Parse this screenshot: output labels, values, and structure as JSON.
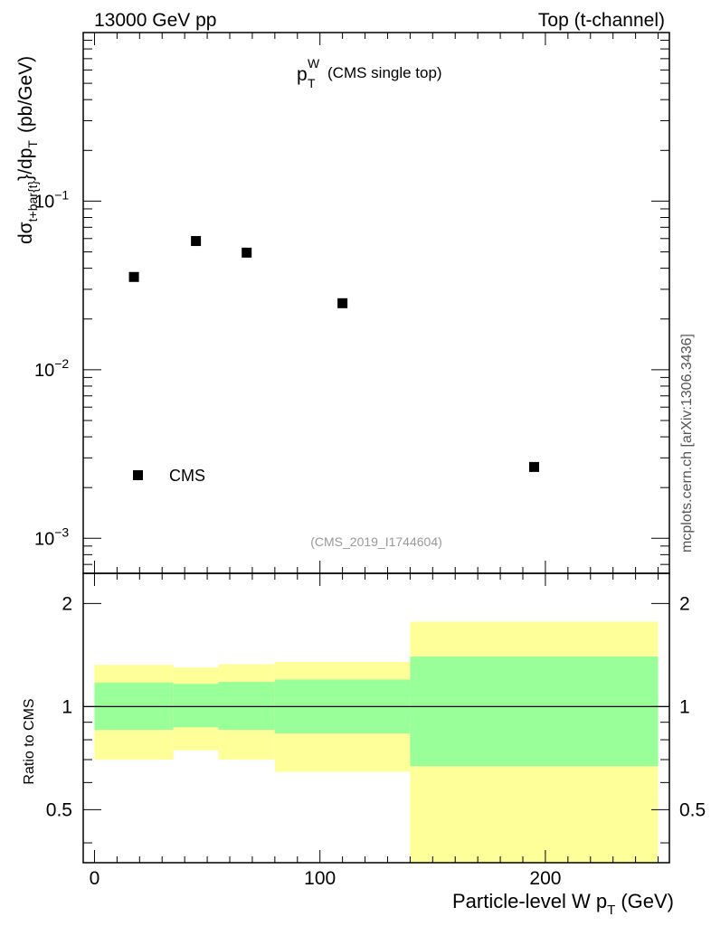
{
  "header": {
    "left": "13000 GeV pp",
    "right": "Top (t-channel)"
  },
  "plot_title": {
    "main": "p",
    "sub": "T",
    "sup": "W",
    "suffix": "(CMS single top)"
  },
  "watermark": "(CMS_2019_I1744604)",
  "side_label": "mcplots.cern.ch [arXiv:1306.3436]",
  "ylabel": {
    "p1": "dσ",
    "p2": "t+bar{t}",
    "p3": "}/dp",
    "p4": "T",
    "p5": "(pb/GeV)"
  },
  "ratio_ylabel": "Ratio to CMS",
  "xlabel": {
    "p1": "Particle-level W p",
    "p2": "T",
    "p3": "(GeV)"
  },
  "colors": {
    "inner_band": "#99ff99",
    "outer_band": "#ffff99",
    "marker": "#000000",
    "ref_line": "#000000"
  },
  "chart_data": {
    "type": "scatter",
    "title": "p_T^W (CMS single top)",
    "xlim": [
      -5,
      255
    ],
    "main": {
      "yscale": "log",
      "ylim": [
        0.00062,
        1.0
      ],
      "y_ticks": [
        {
          "value": 0.1,
          "base": "10",
          "exp": "−1"
        },
        {
          "value": 0.01,
          "base": "10",
          "exp": "−2"
        },
        {
          "value": 0.001,
          "base": "10",
          "exp": "−3"
        }
      ],
      "series": [
        {
          "name": "CMS",
          "points": [
            {
              "x": 17.5,
              "y": 0.0355
            },
            {
              "x": 45,
              "y": 0.058
            },
            {
              "x": 67.5,
              "y": 0.0495
            },
            {
              "x": 110,
              "y": 0.0248
            },
            {
              "x": 195,
              "y": 0.00265
            }
          ]
        }
      ],
      "legend": {
        "position": "bottom-left",
        "entries": [
          "CMS"
        ]
      }
    },
    "ratio": {
      "yscale": "log",
      "ylim": [
        0.35,
        2.45
      ],
      "y_ticks": [
        {
          "value": 0.5,
          "label": "0.5"
        },
        {
          "value": 1,
          "label": "1"
        },
        {
          "value": 2,
          "label": "2"
        }
      ],
      "bins": [
        {
          "x0": 0,
          "x1": 35,
          "inner": [
            0.855,
            1.175
          ],
          "outer": [
            0.7,
            1.325
          ]
        },
        {
          "x0": 35,
          "x1": 55,
          "inner": [
            0.87,
            1.165
          ],
          "outer": [
            0.745,
            1.3
          ]
        },
        {
          "x0": 55,
          "x1": 80,
          "inner": [
            0.855,
            1.18
          ],
          "outer": [
            0.7,
            1.33
          ]
        },
        {
          "x0": 80,
          "x1": 140,
          "inner": [
            0.835,
            1.2
          ],
          "outer": [
            0.645,
            1.35
          ]
        },
        {
          "x0": 140,
          "x1": 250,
          "inner": [
            0.67,
            1.4
          ],
          "outer": [
            0.35,
            1.77
          ]
        }
      ]
    },
    "x_ticks": [
      {
        "value": 0,
        "label": "0"
      },
      {
        "value": 100,
        "label": "100"
      },
      {
        "value": 200,
        "label": "200"
      }
    ]
  }
}
